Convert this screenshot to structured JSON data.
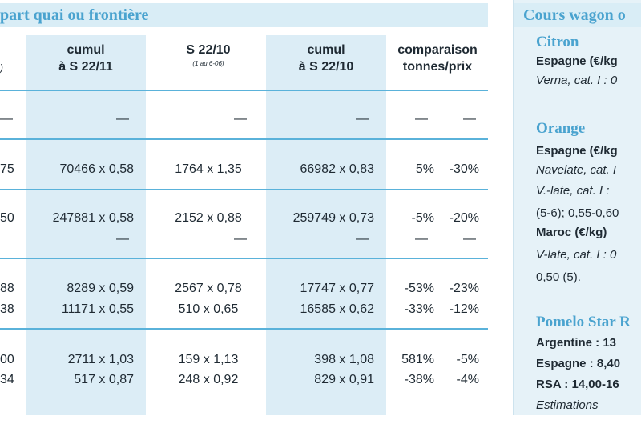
{
  "main": {
    "title": "part quai ou frontière",
    "headers": {
      "col1a": "cumul",
      "col1b": "à S 22/11",
      "col2a": "S 22/10",
      "col2b": "(1 au 6-06)",
      "col3a": "cumul",
      "col3b": "à S 22/10",
      "col4a": "comparaison",
      "col4b": "tonnes/prix"
    },
    "row_edge_fragments": [
      ")",
      "75",
      "50",
      "88",
      "38",
      "00",
      "34"
    ],
    "dash": "—",
    "rows": [
      {
        "c1": "70466 x 0,58",
        "c2": "1764 x 1,35",
        "c3": "66982 x 0,83",
        "t": "5%",
        "p": "-30%"
      },
      {
        "c1": "247881 x 0,58",
        "c2": "2152 x 0,88",
        "c3": "259749 x 0,73",
        "t": "-5%",
        "p": "-20%"
      },
      {
        "c1": "8289 x 0,59",
        "c2": "2567 x 0,78",
        "c3": "17747 x 0,77",
        "t": "-53%",
        "p": "-23%"
      },
      {
        "c1": "11171 x 0,55",
        "c2": "510 x 0,65",
        "c3": "16585 x 0,62",
        "t": "-33%",
        "p": "-12%"
      },
      {
        "c1": "2711 x 1,03",
        "c2": "159 x 1,13",
        "c3": "398 x 1,08",
        "t": "581%",
        "p": "-5%"
      },
      {
        "c1": "517 x 0,87",
        "c2": "248 x 0,92",
        "c3": "829 x 0,91",
        "t": "-38%",
        "p": "-4%"
      }
    ]
  },
  "panel": {
    "title": "Cours wagon o",
    "citron": "Citron",
    "citron_l1": "Espagne (€/kg",
    "citron_l2": "Verna, cat. I : 0",
    "orange": "Orange",
    "orange_l1": "Espagne (€/kg",
    "orange_l2": "Navelate, cat. I",
    "orange_l3": "V.-late, cat. I :",
    "orange_l4": "(5-6); 0,55-0,60",
    "orange_l5": "Maroc (€/kg)",
    "orange_l6": "V-late, cat. I : 0",
    "orange_l7": "0,50 (5).",
    "pomelo": "Pomelo Star R",
    "pomelo_l1": "Argentine : 13",
    "pomelo_l2": "Espagne : 8,40",
    "pomelo_l3": "RSA : 14,00-16",
    "pomelo_l4": "Estimations"
  }
}
